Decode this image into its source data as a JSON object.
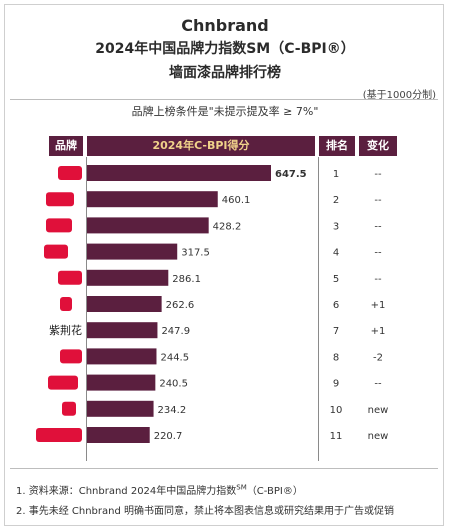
{
  "header": {
    "line1": "Chnbrand",
    "line2": "2024年中国品牌力指数SM（C-BPI®）",
    "line3": "墙面漆品牌排行榜",
    "unit_note": "(基于1000分制)",
    "condition": "品牌上榜条件是\"未提示提及率 ≥ 7%\""
  },
  "columns": {
    "brand": "品牌",
    "score": "2024年C-BPI得分",
    "rank": "排名",
    "change": "变化"
  },
  "chart_data": {
    "type": "bar",
    "orientation": "horizontal",
    "categories": [
      "",
      "",
      "",
      "",
      "",
      "",
      "紫荆花",
      "",
      "",
      "",
      ""
    ],
    "values": [
      647.5,
      460.1,
      428.2,
      317.5,
      286.1,
      262.6,
      247.9,
      244.5,
      240.5,
      234.2,
      220.7
    ],
    "value_labels": [
      "647.5",
      "460.1",
      "428.2",
      "317.5",
      "286.1",
      "262.6",
      "247.9",
      "244.5",
      "240.5",
      "234.2",
      "220.7"
    ],
    "ranks": [
      "1",
      "2",
      "3",
      "4",
      "5",
      "6",
      "7",
      "8",
      "9",
      "10",
      "11"
    ],
    "changes": [
      "--",
      "--",
      "--",
      "--",
      "--",
      "+1",
      "+1",
      "-2",
      "--",
      "new",
      "new"
    ],
    "colors": {
      "bar": "#5b1f3f",
      "header": "#5b1f3f",
      "header_accent": "#f0d28a",
      "redaction": "#e0103a"
    },
    "xlim": [
      0,
      700
    ]
  },
  "footer": {
    "note1": "1. 资料来源：Chnbrand 2024年中国品牌力指数",
    "note1_sup": "SM",
    "note1_tail": "（C-BPI®）",
    "note2": "2. 事先未经 Chnbrand 明确书面同意，禁止将本图表信息或研究结果用于广告或促销"
  }
}
